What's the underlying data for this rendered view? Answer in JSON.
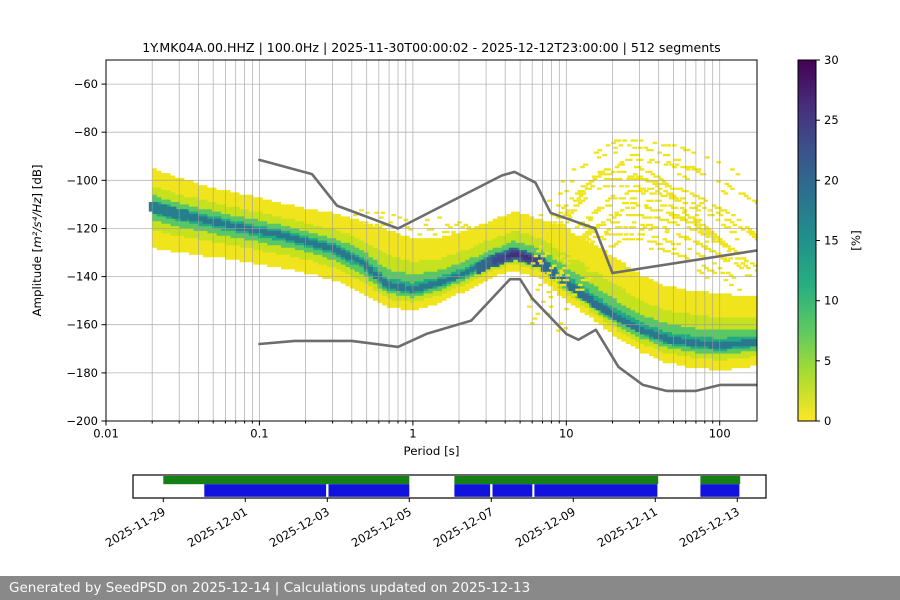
{
  "header": {
    "title": "1Y.MK04A.00.HHZ | 100.0Hz | 2025-11-30T00:00:02 - 2025-12-12T23:00:00 | 512 segments"
  },
  "footer": {
    "text": "Generated by SeedPSD on 2025-12-14 | Calculations updated on 2025-12-13",
    "bg": "#898989",
    "fg": "#fafafa"
  },
  "chart_data": {
    "type": "heatmap",
    "title": "1Y.MK04A.00.HHZ | 100.0Hz | 2025-11-30T00:00:02 - 2025-12-12T23:00:00 | 512 segments",
    "xlabel": "Period [s]",
    "ylabel_parts": [
      "Amplitude [",
      "m²/s⁴/Hz",
      "] [dB]"
    ],
    "colorbar_label": "[%]",
    "xlim": [
      0.01,
      175
    ],
    "ylim": [
      -200,
      -50
    ],
    "x_scale": "log",
    "grid": true,
    "x_ticks": [
      0.01,
      0.1,
      1,
      10,
      100
    ],
    "x_tick_labels": [
      "0.01",
      "0.1",
      "1",
      "10",
      "100"
    ],
    "y_ticks": [
      -60,
      -80,
      -100,
      -120,
      -140,
      -160,
      -180,
      -200
    ],
    "y_tick_labels": [
      "−60",
      "−80",
      "−100",
      "−120",
      "−140",
      "−160",
      "−180",
      "−200"
    ],
    "colorbar": {
      "min": 0,
      "max": 30,
      "ticks": [
        0,
        5,
        10,
        15,
        20,
        25,
        30
      ],
      "tick_labels": [
        "0",
        "5",
        "10",
        "15",
        "20",
        "25",
        "30"
      ],
      "viridis_bottom_to_top": [
        "#fde725",
        "#addc30",
        "#5ec962",
        "#28ae80",
        "#21918c",
        "#2c728e",
        "#3b528b",
        "#472d7b",
        "#440154"
      ]
    },
    "density": {
      "comment_units": "probability density ridge and envelope of PPSD, dB rel 1 (m^2/s^4)/Hz",
      "periods": [
        0.02,
        0.03,
        0.05,
        0.07,
        0.1,
        0.15,
        0.22,
        0.32,
        0.46,
        0.68,
        1,
        1.5,
        2.2,
        3.2,
        4.6,
        6.8,
        10,
        15,
        22,
        32,
        46,
        68,
        100,
        146,
        175
      ],
      "upper_db": [
        -95,
        -99,
        -103,
        -105,
        -107,
        -110,
        -112,
        -114,
        -117,
        -120.5,
        -124,
        -124,
        -121,
        -117,
        -113,
        -116,
        -120,
        -126,
        -133,
        -140,
        -144,
        -146,
        -147,
        -148,
        -148
      ],
      "mode_db": [
        -111,
        -114,
        -117,
        -119,
        -121,
        -123,
        -126,
        -129,
        -134,
        -144,
        -146,
        -143,
        -139,
        -134,
        -130.5,
        -134,
        -143,
        -151,
        -158,
        -163,
        -166.5,
        -168,
        -169,
        -168,
        -167.5
      ],
      "lower_db": [
        -128,
        -130,
        -132,
        -133,
        -135,
        -137,
        -139,
        -142,
        -147,
        -153,
        -154,
        -151,
        -146,
        -140.5,
        -137.5,
        -141,
        -150,
        -158,
        -166,
        -172,
        -176,
        -178,
        -179,
        -178,
        -177
      ]
    },
    "bands": [
      {
        "color": "#f0e51d",
        "tf": 1.0,
        "bf": 1.0
      },
      {
        "color": "#c6e11e",
        "tf": 0.55,
        "bf": 0.58
      },
      {
        "color": "#59c864",
        "tf": 0.3,
        "bf": 0.34
      },
      {
        "color": "#22a884",
        "tf": 0.15,
        "bf": 0.18
      },
      {
        "color": "#2a788e",
        "tf": 0.08,
        "bf": 0.1
      }
    ],
    "cores": [
      {
        "p1": 0.019,
        "p2": 0.034,
        "half": 2.2,
        "color": "#277f8e"
      },
      {
        "p1": 2.6,
        "p2": 8.5,
        "half": 2.6,
        "color": "#31688e"
      },
      {
        "p1": 3.3,
        "p2": 6.8,
        "half": 1.5,
        "color": "#3e4989"
      },
      {
        "p1": 4.0,
        "p2": 5.9,
        "half": 0.8,
        "color": "#462f7c"
      },
      {
        "p1": 9.0,
        "p2": 20.0,
        "half": 1.5,
        "color": "#2e6e8e"
      }
    ],
    "noise_models": {
      "color": "#6d6d6d",
      "nhnm": [
        [
          0.1,
          -91.5
        ],
        [
          0.22,
          -97.4
        ],
        [
          0.32,
          -110.5
        ],
        [
          0.8,
          -120.0
        ],
        [
          3.8,
          -98.0
        ],
        [
          4.6,
          -96.5
        ],
        [
          6.3,
          -101.0
        ],
        [
          7.9,
          -113.5
        ],
        [
          15.4,
          -120.0
        ],
        [
          20,
          -138.5
        ],
        [
          175,
          -129.1
        ]
      ],
      "nlnm": [
        [
          0.1,
          -168.0
        ],
        [
          0.17,
          -166.7
        ],
        [
          0.4,
          -166.7
        ],
        [
          0.8,
          -169.2
        ],
        [
          1.24,
          -163.7
        ],
        [
          2.4,
          -158.3
        ],
        [
          4.3,
          -141.1
        ],
        [
          5,
          -141.1
        ],
        [
          6,
          -149.0
        ],
        [
          10,
          -163.8
        ],
        [
          12,
          -166.2
        ],
        [
          15.6,
          -162.1
        ],
        [
          21.9,
          -177.5
        ],
        [
          31.6,
          -185.0
        ],
        [
          45,
          -187.5
        ],
        [
          70,
          -187.5
        ],
        [
          101,
          -185.0
        ],
        [
          154,
          -185.0
        ],
        [
          175,
          -185.0
        ]
      ]
    },
    "transient_fan": {
      "color": "#f0e51d",
      "seed": 42,
      "peak_period_s": 21,
      "max_db": -83,
      "arc_count": 18,
      "left_rows": [
        [
          -112.5,
          -0.85,
          -0.05
        ],
        [
          -115.5,
          -0.7,
          0.2
        ],
        [
          -118.5,
          -0.45,
          0.38
        ],
        [
          -121.0,
          -0.15,
          0.44
        ]
      ]
    }
  },
  "timeline": {
    "tick_dates": [
      "2025-11-29",
      "2025-12-01",
      "2025-12-03",
      "2025-12-05",
      "2025-12-07",
      "2025-12-09",
      "2025-12-11",
      "2025-12-13"
    ],
    "green": {
      "color": "#158015",
      "segments_days_from_2025_11_29": [
        [
          0,
          6.0
        ],
        [
          7.1,
          12.07
        ],
        [
          13.1,
          14.07
        ]
      ]
    },
    "blue": {
      "color": "#1212dd",
      "segments_days_from_2025_11_29": [
        [
          1.0,
          3.97
        ],
        [
          4.03,
          6.0
        ],
        [
          7.1,
          7.97
        ],
        [
          8.03,
          9.0
        ],
        [
          9.05,
          12.05
        ],
        [
          13.1,
          14.05
        ]
      ]
    }
  }
}
